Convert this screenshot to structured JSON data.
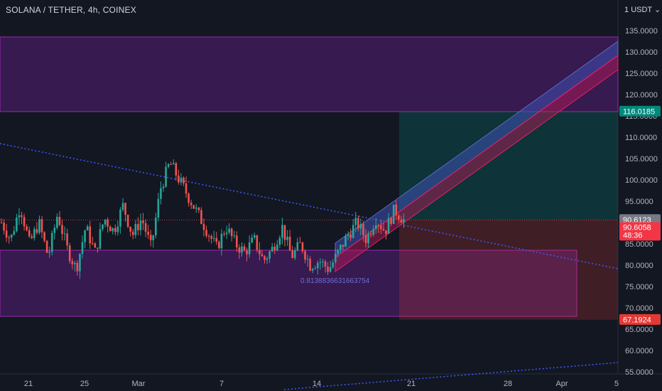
{
  "header": {
    "symbol_title": "SOLANA / TETHER, 4h, COINEX",
    "currency_label": "USDT"
  },
  "colors": {
    "background": "#131722",
    "up_candle": "#26a69a",
    "down_candle": "#ef5350",
    "zone_purple": "#7b1fa2",
    "target_green": "#00897b",
    "stop_red": "#e53935",
    "channel_blue": "#3f51b5",
    "trend_dotted": "#3d5afe"
  },
  "chart_data": {
    "type": "candlestick",
    "y_axis_ticks": [
      "135.0000",
      "130.0000",
      "125.0000",
      "120.0000",
      "115.0000",
      "110.0000",
      "105.0000",
      "100.0000",
      "95.0000",
      "90.0000",
      "85.0000",
      "80.0000",
      "75.0000",
      "70.0000",
      "65.0000",
      "60.0000",
      "55.0000"
    ],
    "y_range": [
      55,
      137
    ],
    "x_axis_ticks": [
      "21",
      "25",
      "Mar",
      "7",
      "14",
      "21",
      "28",
      "Apr",
      "5"
    ],
    "price_tags": {
      "target": "116.0185",
      "entry": "90.6123",
      "last_price": "90.6058",
      "countdown": "48:36",
      "stop": "67.1924"
    },
    "annotation": "0.8138836631663754",
    "zones": {
      "upper_resistance": [
        116.0,
        133.5
      ],
      "lower_support": [
        68.0,
        83.5
      ]
    },
    "ohlc_anchor_closes": [
      90,
      86,
      94,
      85,
      90,
      82,
      92,
      84,
      79,
      89,
      83,
      91,
      88,
      94,
      87,
      91,
      84,
      98,
      104,
      100,
      96,
      92,
      88,
      84,
      89,
      85,
      83,
      86,
      81,
      84,
      89,
      82,
      85,
      80,
      81,
      79,
      83,
      87,
      90,
      86,
      91,
      88,
      93,
      90.6
    ]
  }
}
